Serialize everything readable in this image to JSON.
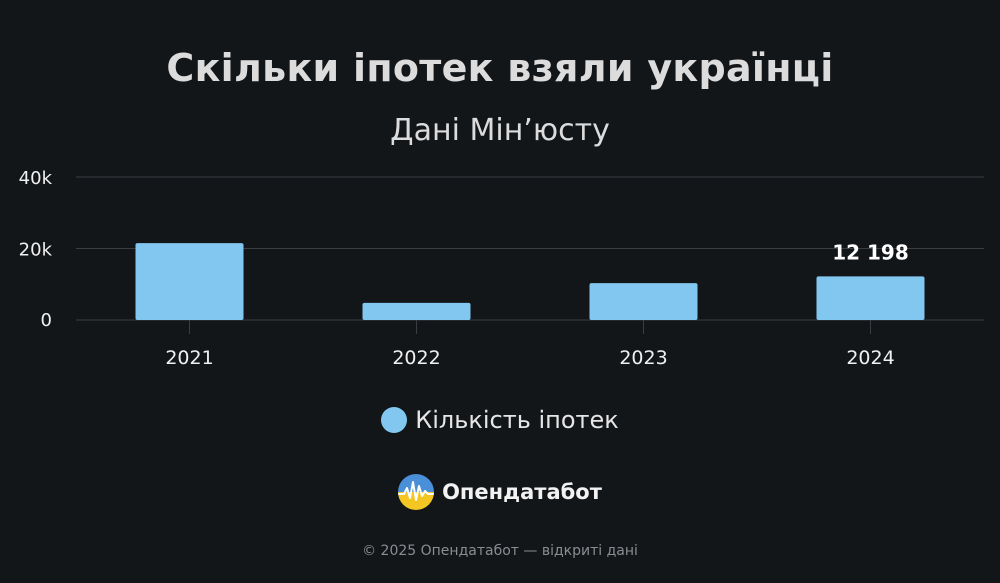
{
  "title": "Скільки іпотек взяли українці",
  "subtitle": "Дані Мін’юсту",
  "colors": {
    "background": "#131619",
    "bar": "#82c7f0",
    "grid": "#3a3e43"
  },
  "chart_data": {
    "type": "bar",
    "categories": [
      "2021",
      "2022",
      "2023",
      "2024"
    ],
    "series": [
      {
        "name": "Кількість іпотек",
        "values": [
          21500,
          4800,
          10300,
          12198
        ]
      }
    ],
    "data_labels": [
      null,
      null,
      null,
      "12 198"
    ],
    "yticks": [
      "0",
      "20k",
      "40k"
    ],
    "ylim": [
      0,
      40000
    ],
    "grid": true,
    "legend_position": "bottom"
  },
  "legend": {
    "label": "Кількість іпотек"
  },
  "brand": {
    "name": "Опендатабот",
    "logo_icon": "opendatabot-logo-icon"
  },
  "footer": "© 2025 Опендатабот — відкриті дані"
}
